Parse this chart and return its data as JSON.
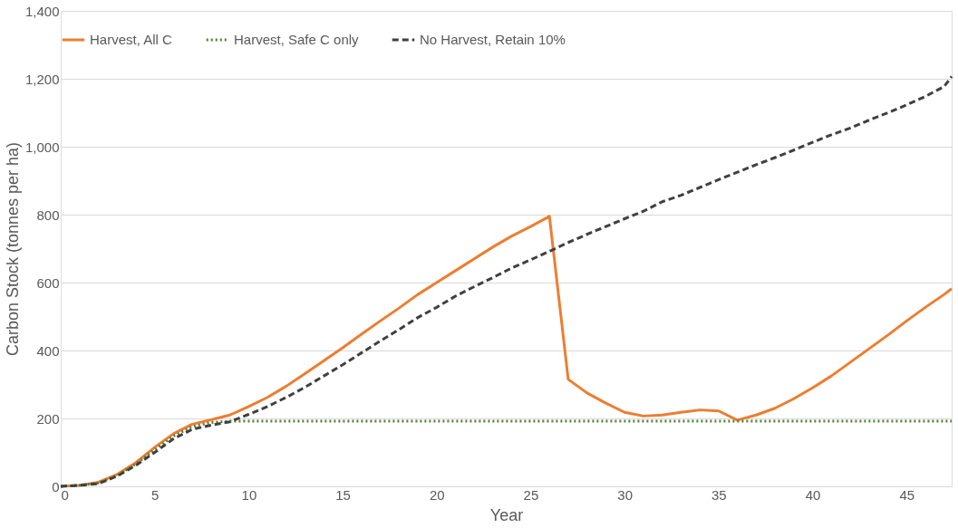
{
  "chart_data": {
    "type": "line",
    "xlabel": "Year",
    "ylabel": "Carbon Stock (tonnes per ha)",
    "xlim": [
      0,
      47.4
    ],
    "xticks": [
      0,
      5,
      10,
      15,
      20,
      25,
      30,
      35,
      40,
      45
    ],
    "ylim": [
      0,
      1400
    ],
    "yticks": [
      0,
      200,
      400,
      600,
      800,
      {
        "value": 1000,
        "label": "1,000"
      },
      {
        "value": 1200,
        "label": "1,200"
      },
      {
        "value": 1400,
        "label": "1,400"
      }
    ],
    "grid": "y",
    "legend": "top",
    "marker": "none",
    "series": [
      {
        "name": "Harvest, All C",
        "color": "#ed7d31",
        "line_style": "solid",
        "x": [
          0,
          1,
          2,
          3,
          4,
          5,
          6,
          7,
          8,
          9,
          10,
          11,
          12,
          13,
          14,
          15,
          16,
          17,
          18,
          19,
          20,
          21,
          22,
          23,
          24,
          25,
          26,
          27,
          28,
          29,
          30,
          31,
          32,
          33,
          34,
          35,
          36,
          37,
          38,
          39,
          40,
          41,
          42,
          43,
          44,
          45,
          46,
          47,
          47.4
        ],
        "values": [
          0,
          3,
          12,
          35,
          70,
          115,
          155,
          183,
          196,
          210,
          235,
          262,
          295,
          332,
          370,
          408,
          448,
          487,
          525,
          565,
          600,
          635,
          670,
          705,
          737,
          765,
          795,
          315,
          275,
          245,
          218,
          207,
          210,
          218,
          225,
          222,
          195,
          210,
          230,
          258,
          290,
          325,
          365,
          405,
          445,
          487,
          527,
          565,
          582
        ]
      },
      {
        "name": "Harvest, Safe C only",
        "color": "#548235",
        "line_style": "dotted",
        "x": [
          0,
          1,
          2,
          3,
          4,
          5,
          6,
          7,
          8,
          9,
          47.4
        ],
        "values": [
          0,
          3,
          10,
          32,
          66,
          108,
          148,
          176,
          188,
          192,
          192
        ]
      },
      {
        "name": "No Harvest, Retain 10%",
        "color": "#404040",
        "line_style": "dashed",
        "x": [
          0,
          1,
          2,
          3,
          4,
          5,
          6,
          7,
          8,
          9,
          10,
          11,
          12,
          13,
          14,
          15,
          16,
          17,
          18,
          19,
          20,
          21,
          22,
          23,
          24,
          25,
          26,
          27,
          28,
          29,
          30,
          31,
          32,
          33,
          34,
          35,
          36,
          37,
          38,
          39,
          40,
          41,
          42,
          43,
          44,
          45,
          46,
          47,
          47.4
        ],
        "values": [
          0,
          3,
          8,
          30,
          62,
          100,
          140,
          168,
          180,
          190,
          212,
          235,
          262,
          292,
          325,
          358,
          393,
          428,
          462,
          497,
          527,
          560,
          588,
          615,
          643,
          667,
          692,
          718,
          742,
          765,
          788,
          810,
          838,
          857,
          880,
          903,
          925,
          947,
          968,
          990,
          1013,
          1035,
          1055,
          1078,
          1100,
          1123,
          1148,
          1177,
          1207
        ]
      }
    ]
  }
}
